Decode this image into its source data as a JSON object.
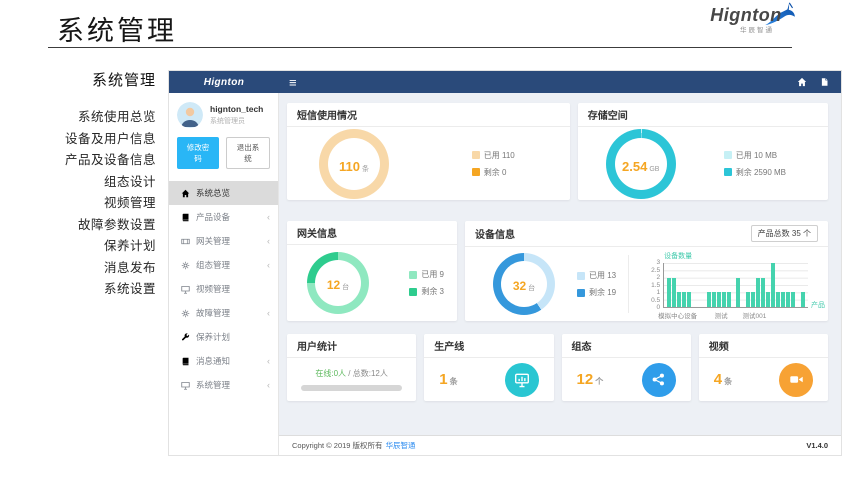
{
  "page": {
    "title": "系统管理"
  },
  "brand": {
    "name": "Hignton",
    "tagline": "华辰智通"
  },
  "outer_menu": {
    "header": "系统管理",
    "items": [
      "系统使用总览",
      "设备及用户信息",
      "产品及设备信息",
      "组态设计",
      "视频管理",
      "故障参数设置",
      "保养计划",
      "消息发布",
      "系统设置"
    ]
  },
  "navbar": {
    "logo": "Hignton"
  },
  "user_panel": {
    "username": "hignton_tech",
    "role": "系统管理员",
    "change_password": "修改密码",
    "logout": "退出系统"
  },
  "sidebar_menu": [
    {
      "label": "系统总览",
      "icon": "home-icon",
      "active": true,
      "has_children": false
    },
    {
      "label": "产品设备",
      "icon": "book-icon",
      "active": false,
      "has_children": true
    },
    {
      "label": "网关管理",
      "icon": "film-icon",
      "active": false,
      "has_children": true
    },
    {
      "label": "组态管理",
      "icon": "gear-icon",
      "active": false,
      "has_children": true
    },
    {
      "label": "视频管理",
      "icon": "monitor-icon",
      "active": false,
      "has_children": false
    },
    {
      "label": "故障管理",
      "icon": "gear-icon",
      "active": false,
      "has_children": true
    },
    {
      "label": "保养计划",
      "icon": "wrench-icon",
      "active": false,
      "has_children": false
    },
    {
      "label": "消息通知",
      "icon": "book-icon",
      "active": false,
      "has_children": true
    },
    {
      "label": "系统管理",
      "icon": "monitor-icon",
      "active": false,
      "has_children": true
    }
  ],
  "cards": {
    "sms": {
      "title": "短信使用情况",
      "value": "110",
      "unit": "条",
      "donut": {
        "used": 110,
        "remaining": 0,
        "color_used": "#f8d8a8",
        "color_remaining": "#f5a623"
      },
      "legend": [
        {
          "color": "#f8d8a8",
          "label": "已用 110"
        },
        {
          "color": "#f5a623",
          "label": "剩余 0"
        }
      ]
    },
    "storage": {
      "title": "存储空间",
      "value": "2.54",
      "unit": "GB",
      "donut": {
        "used": 10,
        "remaining": 2590,
        "color_used": "#c6f0f5",
        "color_remaining": "#2cc5d7"
      },
      "legend": [
        {
          "color": "#c6f0f5",
          "label": "已用 10 MB"
        },
        {
          "color": "#2cc5d7",
          "label": "剩余 2590 MB"
        }
      ]
    },
    "gateway": {
      "title": "网关信息",
      "value": "12",
      "unit": "台",
      "donut": {
        "used": 9,
        "remaining": 3,
        "color_used": "#8fe8c0",
        "color_remaining": "#2ecc8e"
      },
      "legend": [
        {
          "color": "#8fe8c0",
          "label": "已用 9"
        },
        {
          "color": "#2ecc8e",
          "label": "剩余 3"
        }
      ]
    },
    "device": {
      "title": "设备信息",
      "value": "32",
      "unit": "台",
      "badge": "产品总数 35 个",
      "donut": {
        "used": 13,
        "remaining": 19,
        "color_used": "#c6e5f8",
        "color_remaining": "#3598dc"
      },
      "legend": [
        {
          "color": "#c6e5f8",
          "label": "已用 13"
        },
        {
          "color": "#3598dc",
          "label": "剩余 19"
        }
      ]
    },
    "users": {
      "title": "用户统计",
      "online": "在线:0人",
      "sep": " / ",
      "total": "总数:12人"
    },
    "production": {
      "title": "生产线",
      "value": "1",
      "unit": "条",
      "icon_color": "#29c6d2"
    },
    "config": {
      "title": "组态",
      "value": "12",
      "unit": "个",
      "icon_color": "#2f9dea"
    },
    "video": {
      "title": "视频",
      "value": "4",
      "unit": "条",
      "icon_color": "#f7a234"
    }
  },
  "chart_data": {
    "type": "bar",
    "title": "设备数量",
    "xlabel": "产品",
    "ylabel": "设备数量",
    "ylim": [
      0,
      3
    ],
    "yticks_desc": [
      "3",
      "2.5",
      "2",
      "1.5",
      "1",
      "0.5",
      "0"
    ],
    "values": [
      2,
      2,
      1,
      1,
      1,
      0,
      0,
      0,
      1,
      1,
      1,
      1,
      1,
      0,
      2,
      0,
      1,
      1,
      2,
      2,
      1,
      3,
      1,
      1,
      1,
      1,
      0,
      1
    ],
    "xtick_labels": [
      {
        "label": "模拟中心设备",
        "pos": 0.1
      },
      {
        "label": "测试",
        "pos": 0.4
      },
      {
        "label": "测试001",
        "pos": 0.63
      }
    ],
    "bar_color": "#45d3ae",
    "grid": true,
    "legend_position": "none"
  },
  "footer": {
    "copyright": "Copyright © 2019 版权所有",
    "company": "华辰智通",
    "version": "V1.4.0"
  }
}
